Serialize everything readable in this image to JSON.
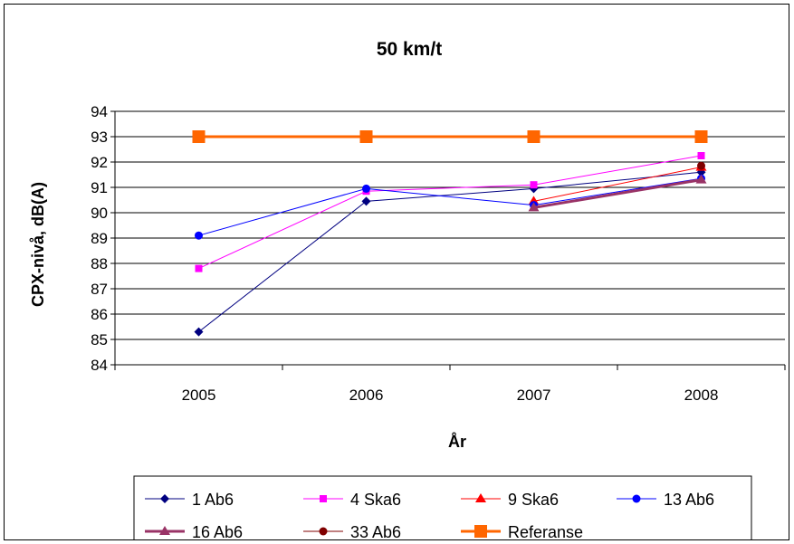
{
  "chart_data": {
    "type": "line",
    "title": "50 km/t",
    "xlabel": "År",
    "ylabel": "CPX-nivå, dB(A)",
    "categories": [
      "2005",
      "2006",
      "2007",
      "2008"
    ],
    "ylim": [
      84,
      94
    ],
    "yticks": [
      84,
      85,
      86,
      87,
      88,
      89,
      90,
      91,
      92,
      93,
      94
    ],
    "grid": "horizontal",
    "legend_position": "bottom",
    "series": [
      {
        "name": "1 Ab6",
        "color": "#000080",
        "marker": "diamond",
        "width": 1,
        "values": [
          85.3,
          90.45,
          90.95,
          91.6
        ]
      },
      {
        "name": "4 Ska6",
        "color": "#FF00FF",
        "marker": "square",
        "width": 1,
        "values": [
          87.8,
          90.85,
          91.1,
          92.25
        ]
      },
      {
        "name": "9 Ska6",
        "color": "#FF0000",
        "marker": "triangle",
        "width": 1,
        "values": [
          null,
          null,
          90.45,
          91.8
        ]
      },
      {
        "name": "13 Ab6",
        "color": "#0000FF",
        "marker": "circle",
        "width": 1,
        "values": [
          89.1,
          90.95,
          90.3,
          91.35
        ]
      },
      {
        "name": "16 Ab6",
        "color": "#993366",
        "marker": "triangle",
        "width": 3,
        "values": [
          null,
          null,
          90.2,
          91.3
        ]
      },
      {
        "name": "33 Ab6",
        "color": "#800000",
        "marker": "circle",
        "width": 1,
        "values": [
          null,
          null,
          null,
          91.85
        ]
      },
      {
        "name": "Referanse",
        "color": "#FF6600",
        "marker": "square-large",
        "width": 3,
        "values": [
          93,
          93,
          93,
          93
        ]
      }
    ]
  }
}
